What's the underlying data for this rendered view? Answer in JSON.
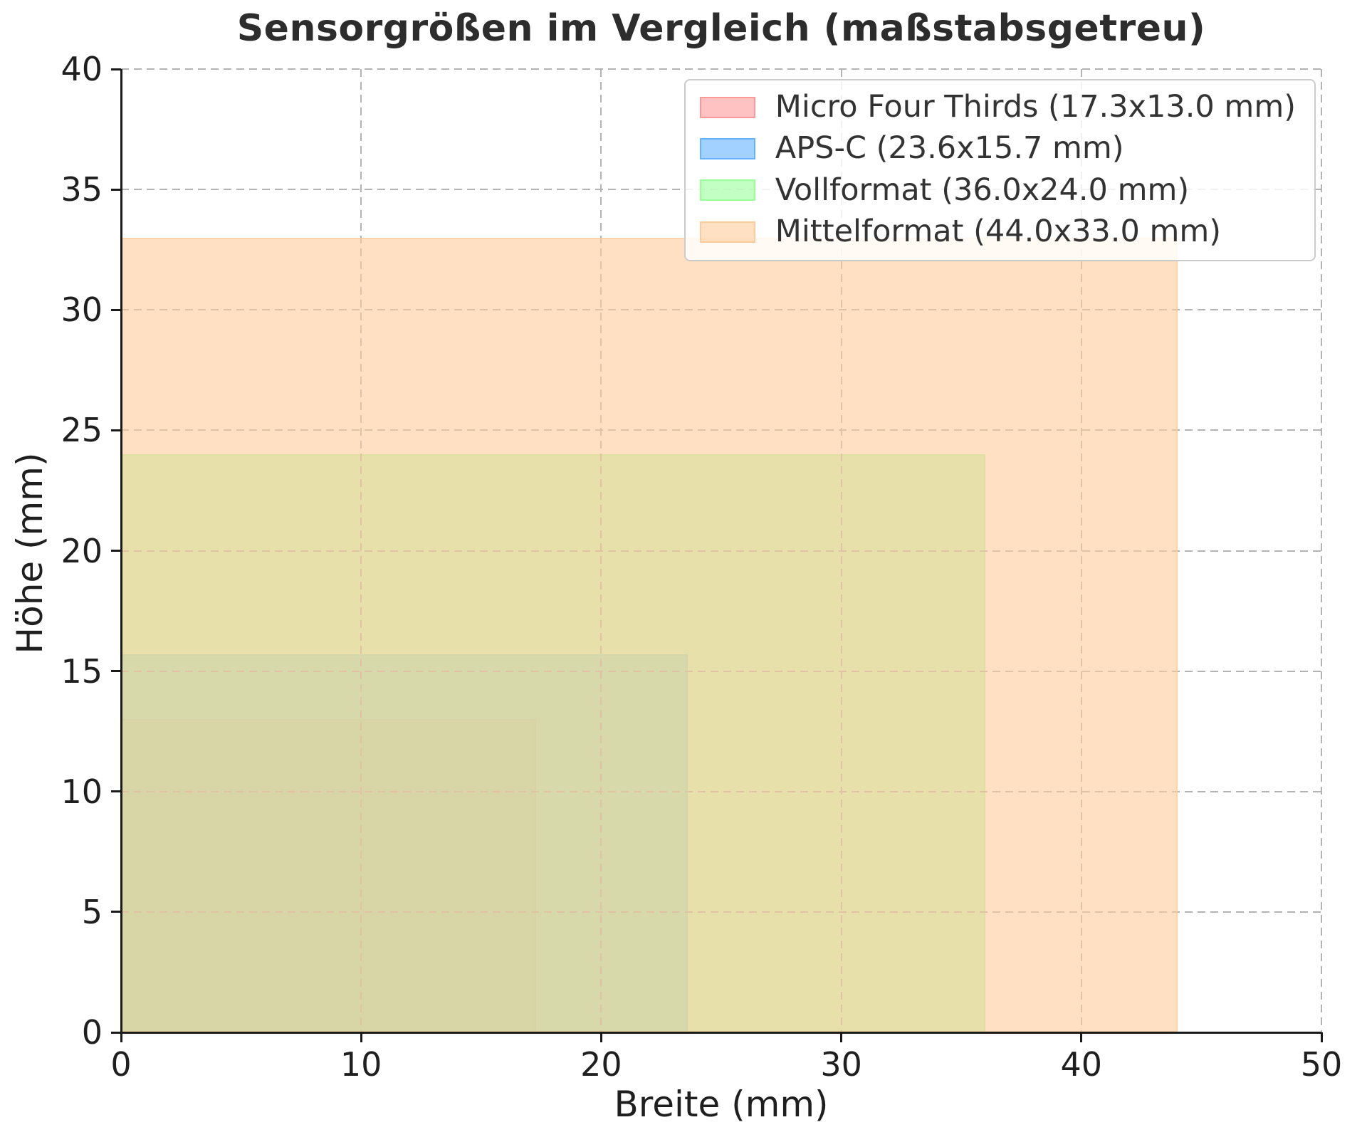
{
  "title": "Sensorgrößen im Vergleich (maßstabsgetreu)",
  "chart_data": {
    "type": "area",
    "subtype": "nested-scale-rectangles",
    "title": "Sensorgrößen im Vergleich (maßstabsgetreu)",
    "xlabel": "Breite (mm)",
    "ylabel": "Höhe (mm)",
    "xlim": [
      0,
      50
    ],
    "ylim": [
      0,
      40
    ],
    "xticks": [
      0,
      10,
      20,
      30,
      40,
      50
    ],
    "yticks": [
      0,
      5,
      10,
      15,
      20,
      25,
      30,
      35,
      40
    ],
    "grid": true,
    "grid_style": "dashed",
    "grid_color": "#b3b3b3",
    "legend_position": "upper right",
    "fill_alpha": 0.6,
    "series": [
      {
        "name": "Micro Four Thirds",
        "label": "Micro Four Thirds (17.3x13.0 mm)",
        "width_mm": 17.3,
        "height_mm": 13.0,
        "color": "#ff9999"
      },
      {
        "name": "APS-C",
        "label": "APS-C (23.6x15.7 mm)",
        "width_mm": 23.6,
        "height_mm": 15.7,
        "color": "#66b3ff"
      },
      {
        "name": "Vollformat",
        "label": "Vollformat (36.0x24.0 mm)",
        "width_mm": 36.0,
        "height_mm": 24.0,
        "color": "#99ff99"
      },
      {
        "name": "Mittelformat",
        "label": "Mittelformat (44.0x33.0 mm)",
        "width_mm": 44.0,
        "height_mm": 33.0,
        "color": "#ffcc99"
      }
    ]
  }
}
